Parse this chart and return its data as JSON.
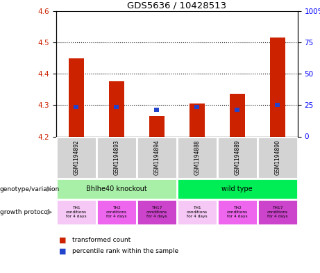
{
  "title": "GDS5636 / 10428513",
  "samples": [
    "GSM1194892",
    "GSM1194893",
    "GSM1194894",
    "GSM1194888",
    "GSM1194889",
    "GSM1194890"
  ],
  "red_values": [
    4.45,
    4.375,
    4.265,
    4.305,
    4.335,
    4.515
  ],
  "blue_values": [
    4.295,
    4.295,
    4.285,
    4.295,
    4.285,
    4.3
  ],
  "bar_base": 4.2,
  "ylim_left": [
    4.2,
    4.6
  ],
  "ylim_right": [
    0,
    100
  ],
  "yticks_left": [
    4.2,
    4.3,
    4.4,
    4.5,
    4.6
  ],
  "yticks_right": [
    0,
    25,
    50,
    75,
    100
  ],
  "ytick_labels_right": [
    "0",
    "25",
    "50",
    "75",
    "100%"
  ],
  "bar_color_red": "#cc2200",
  "bar_color_blue": "#2244cc",
  "genotype_label": "genotype/variation",
  "growth_label": "growth protocol",
  "legend_red": "transformed count",
  "legend_blue": "percentile rank within the sample",
  "genotype_colors": [
    "#90EE90",
    "#00dd44"
  ],
  "genotype_labels": [
    "Bhlhe40 knockout",
    "wild type"
  ],
  "protocol_colors": [
    "#f5c8f5",
    "#ee66ee",
    "#cc44cc",
    "#f5c8f5",
    "#ee66ee",
    "#cc44cc"
  ],
  "protocol_labels": [
    "TH1\nconditions\nfor 4 days",
    "TH2\nconditions\nfor 4 days",
    "TH17\nconditions\nfor 4 days",
    "TH1\nconditions\nfor 4 days",
    "TH2\nconditions\nfor 4 days",
    "TH17\nconditions\nfor 4 days"
  ]
}
